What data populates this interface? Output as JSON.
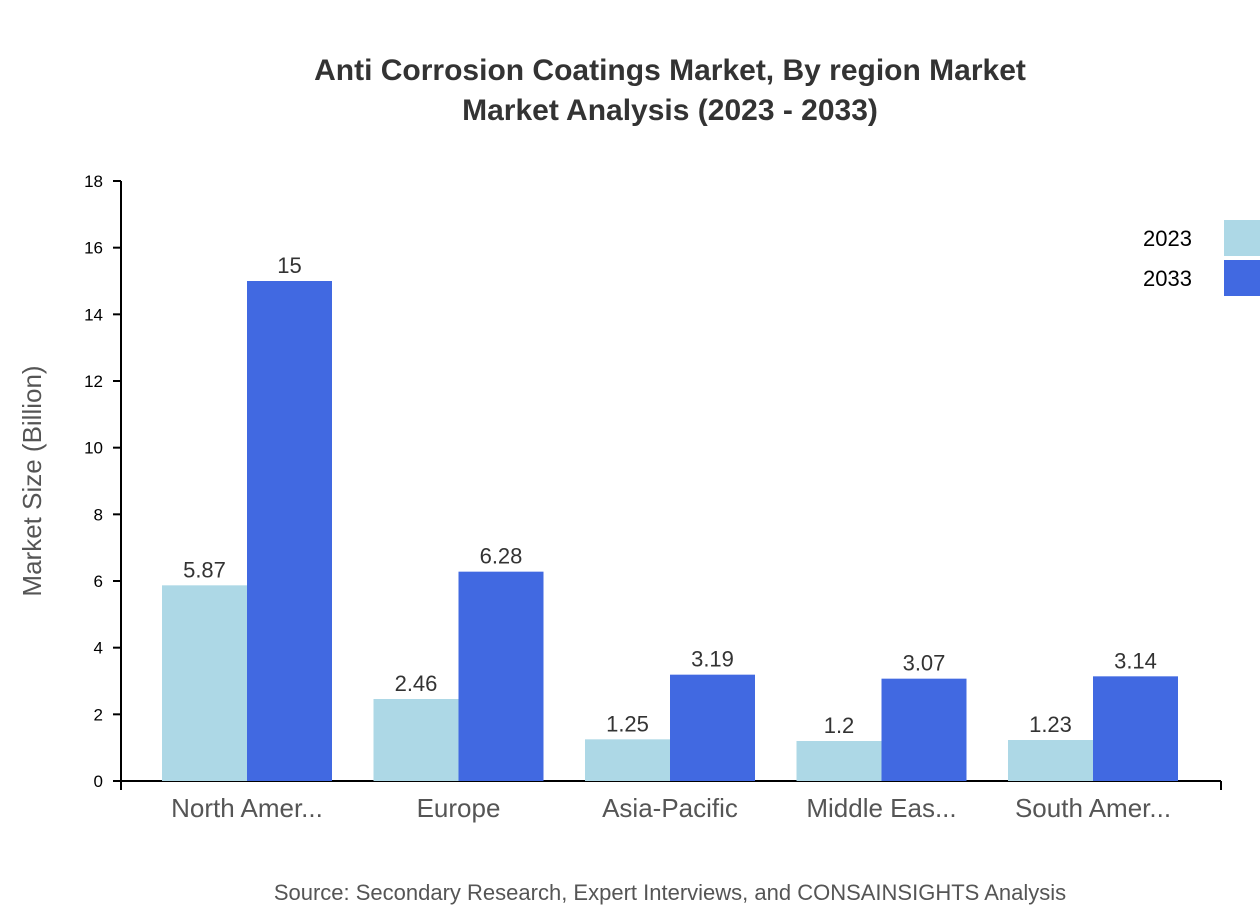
{
  "chart_data": {
    "type": "bar",
    "title_lines": [
      "Anti Corrosion Coatings Market, By region Market",
      "Market Analysis (2023 - 2033)"
    ],
    "xlabel": "",
    "ylabel": "Market Size (Billion)",
    "ylim": [
      0,
      18
    ],
    "yticks": [
      0,
      2,
      4,
      6,
      8,
      10,
      12,
      14,
      16,
      18
    ],
    "categories": [
      "North Amer...",
      "Europe",
      "Asia-Pacific",
      "Middle Eas...",
      "South Amer..."
    ],
    "series": [
      {
        "name": "2023",
        "color": "#ADD8E6",
        "values": [
          5.87,
          2.46,
          1.25,
          1.2,
          1.23
        ]
      },
      {
        "name": "2033",
        "color": "#4169E1",
        "values": [
          15,
          6.28,
          3.19,
          3.07,
          3.14
        ]
      }
    ],
    "grid": false,
    "legend": "top-right",
    "source": "Source: Secondary Research, Expert Interviews, and CONSAINSIGHTS Analysis"
  }
}
